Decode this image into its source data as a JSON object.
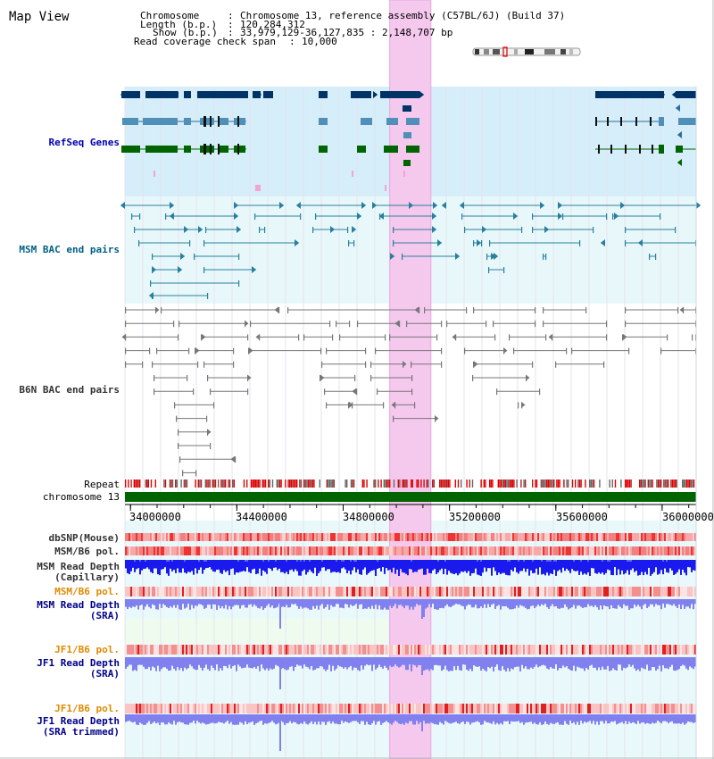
{
  "app": {
    "title": "Map View"
  },
  "info": {
    "chromosome_key": "Chromosome",
    "chromosome_value": "Chromosome 13, reference assembly (C57BL/6J) (Build 37)",
    "length_key": "Length (b.p.)",
    "length_value": "120,284,312",
    "show_key": "Show (b.p.)",
    "show_value": "33,979,129-36,127,835 : 2,148,707 bp",
    "span_key": "Read coverage check span",
    "span_value": "10,000"
  },
  "region": {
    "start": 33979129,
    "end": 36127835,
    "highlight_start": 34975000,
    "highlight_end": 35130000
  },
  "tracks": {
    "refseq": "RefSeq Genes",
    "msm_bac": "MSM BAC end pairs",
    "b6n_bac": "B6N BAC end pairs",
    "repeat": "Repeat",
    "chromosome": "chromosome 13",
    "dbsnp": "dbSNP(Mouse)",
    "msm_b6_pol_1": "MSM/B6 pol.",
    "msm_depth_cap_1": "MSM Read Depth",
    "msm_depth_cap_2": "(Capillary)",
    "msm_b6_pol_2": "MSM/B6 pol.",
    "msm_depth_sra_1": "MSM Read Depth",
    "msm_depth_sra_2": "(SRA)",
    "jf1_b6_pol_1": "JF1/B6 pol.",
    "jf1_depth_sra_1": "JF1 Read Depth",
    "jf1_depth_sra_2": "(SRA)",
    "jf1_b6_pol_2": "JF1/B6 pol.",
    "jf1_depth_trim_1": "JF1 Read Depth",
    "jf1_depth_trim_2": "(SRA trimmed)"
  },
  "axis": {
    "ticks": [
      {
        "value": 34000000,
        "label": "34000000"
      },
      {
        "value": 34400000,
        "label": "34400000"
      },
      {
        "value": 34800000,
        "label": "34800000"
      },
      {
        "value": 35200000,
        "label": "35200000"
      },
      {
        "value": 35600000,
        "label": "35600000"
      },
      {
        "value": 36000000,
        "label": "36000000"
      }
    ]
  },
  "colors": {
    "refseq_bg": "#d5eef9",
    "msm_bg": "#e8f8fa",
    "highlight": "#f5c8ee",
    "gene_navy": "#003366",
    "gene_blue": "#4f8fb8",
    "gene_green": "#006400",
    "msm_pairs": "#2a7f9e",
    "b6n_pairs": "#777777",
    "chromosome": "#006400",
    "depth_capillary": "#1a1aee",
    "depth_sra": "#8080ee"
  }
}
